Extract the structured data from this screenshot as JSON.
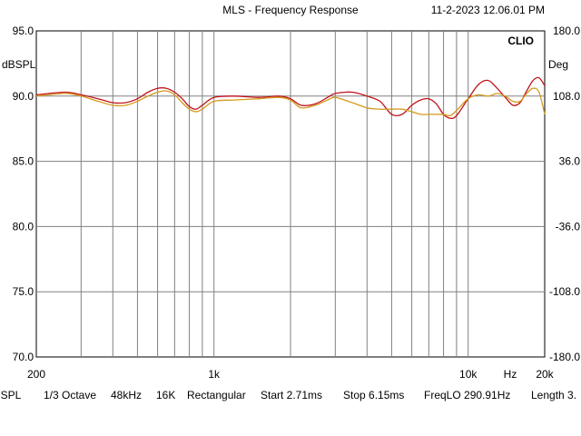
{
  "header": {
    "title": "MLS - Frequency Response",
    "timestamp": "11-2-2023 12.06.01 PM"
  },
  "brand": "CLIO",
  "footer": {
    "items": [
      "dBSPL",
      "1/3 Octave",
      "48kHz",
      "16K",
      "Rectangular",
      "Start 2.71ms",
      "Stop 6.15ms",
      "FreqLO 290.91Hz",
      "Length 3."
    ]
  },
  "colors": {
    "background": "#ffffff",
    "grid": "#808080",
    "series_red": "#c0141c",
    "series_orange": "#d49a1c"
  },
  "chart_data": {
    "type": "line",
    "title": "MLS - Frequency Response",
    "xscale": "log",
    "xlim": [
      200,
      20000
    ],
    "ylim": [
      70,
      95
    ],
    "y2lim": [
      -180,
      180
    ],
    "ylabel": "dBSPL",
    "y2label": "Deg",
    "xunit_label": "Hz",
    "x_ticks": [
      {
        "value": 200,
        "label": "200"
      },
      {
        "value": 1000,
        "label": "1k"
      },
      {
        "value": 10000,
        "label": "10k"
      },
      {
        "value": 20000,
        "label": "20k"
      }
    ],
    "y_ticks": [
      "95.0",
      "90.0",
      "85.0",
      "80.0",
      "75.0",
      "70.0"
    ],
    "y2_ticks": [
      "180.0",
      "108.0",
      "36.0",
      "-36.0",
      "-108.0",
      "-180.0"
    ],
    "grid": true,
    "series": [
      {
        "color": "#c0141c",
        "x": [
          200,
          260,
          300,
          350,
          400,
          450,
          500,
          550,
          600,
          650,
          700,
          750,
          800,
          850,
          900,
          1000,
          1200,
          1500,
          1800,
          2000,
          2200,
          2500,
          2800,
          3000,
          3500,
          4000,
          4500,
          5000,
          5500,
          6000,
          6500,
          7000,
          7500,
          8000,
          8500,
          9000,
          10000,
          11000,
          12000,
          13000,
          14000,
          15000,
          16000,
          17000,
          18000,
          19000,
          20000
        ],
        "y": [
          90.1,
          90.3,
          90.1,
          89.8,
          89.5,
          89.5,
          89.8,
          90.3,
          90.6,
          90.6,
          90.3,
          89.8,
          89.2,
          89.0,
          89.3,
          89.9,
          90.0,
          89.9,
          90.0,
          89.8,
          89.3,
          89.4,
          89.9,
          90.2,
          90.3,
          90.0,
          89.6,
          88.6,
          88.6,
          89.3,
          89.7,
          89.8,
          89.4,
          88.6,
          88.3,
          88.5,
          89.8,
          90.9,
          91.2,
          90.6,
          89.9,
          89.3,
          89.5,
          90.4,
          91.2,
          91.4,
          90.8
        ]
      },
      {
        "color": "#d49a1c",
        "x": [
          200,
          260,
          300,
          350,
          400,
          450,
          500,
          550,
          600,
          650,
          700,
          750,
          800,
          850,
          900,
          1000,
          1200,
          1500,
          1800,
          2000,
          2200,
          2500,
          2800,
          3000,
          3500,
          4000,
          4500,
          5000,
          5500,
          6000,
          6500,
          7000,
          7500,
          8000,
          8500,
          9000,
          10000,
          11000,
          12000,
          13000,
          14000,
          15000,
          16000,
          17000,
          18000,
          19000,
          20000
        ],
        "y": [
          90.0,
          90.2,
          90.0,
          89.6,
          89.3,
          89.3,
          89.6,
          90.0,
          90.3,
          90.4,
          90.1,
          89.5,
          89.0,
          88.8,
          89.0,
          89.6,
          89.7,
          89.8,
          89.9,
          89.7,
          89.1,
          89.3,
          89.7,
          89.9,
          89.5,
          89.1,
          89.0,
          89.0,
          89.0,
          88.8,
          88.6,
          88.6,
          88.6,
          88.6,
          88.5,
          88.9,
          89.8,
          90.1,
          90.0,
          90.2,
          90.0,
          89.6,
          89.6,
          90.2,
          90.6,
          90.3,
          88.6
        ]
      }
    ]
  }
}
